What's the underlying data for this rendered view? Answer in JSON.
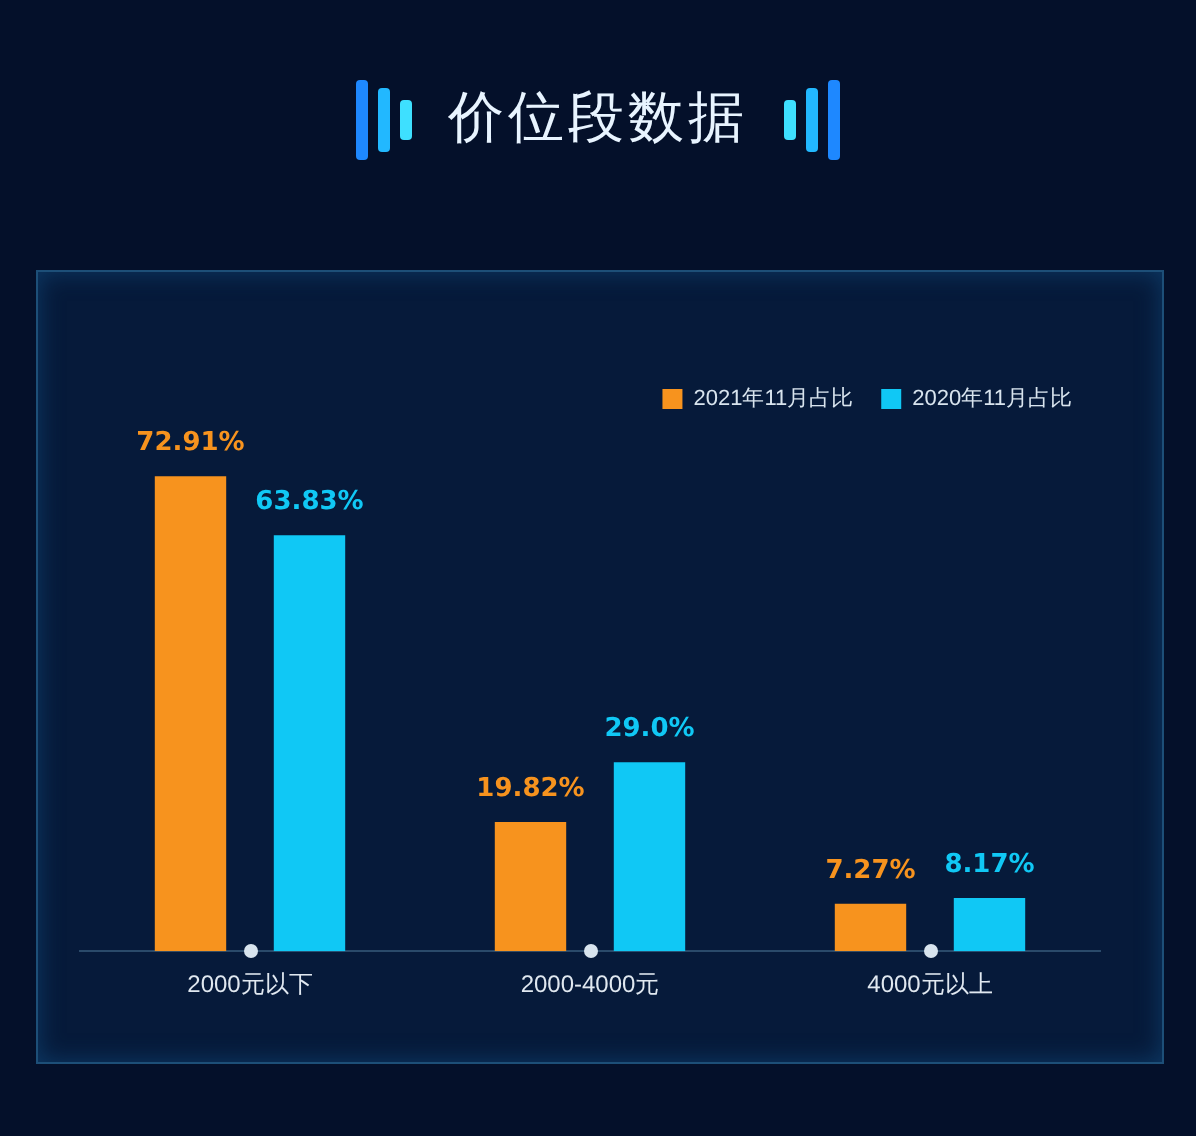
{
  "chart_data": {
    "type": "bar",
    "title": "价位段数据",
    "categories": [
      "2000元以下",
      "2000-4000元",
      "4000元以上"
    ],
    "series": [
      {
        "name": "2021年11月占比",
        "color": "#f7931e",
        "values": [
          72.91,
          19.82,
          7.27
        ],
        "value_labels": [
          "72.91%",
          "19.82%",
          "7.27%"
        ]
      },
      {
        "name": "2020年11月占比",
        "color": "#10c8f5",
        "values": [
          63.83,
          29.0,
          8.17
        ],
        "value_labels": [
          "63.83%",
          "29.0%",
          "8.17%"
        ]
      }
    ],
    "legend": "top right",
    "grid": false
  }
}
